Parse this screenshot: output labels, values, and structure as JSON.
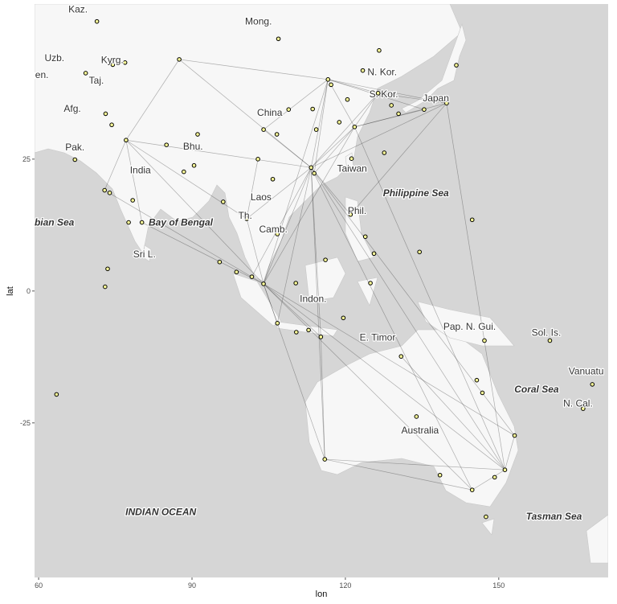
{
  "chart_data": {
    "type": "map",
    "xlabel": "lon",
    "ylabel": "lat",
    "xlim": [
      59.2,
      171.4
    ],
    "ylim": [
      -54.3,
      54.4
    ],
    "xticks": [
      60,
      90,
      120,
      150
    ],
    "yticks": [
      25,
      0,
      -25
    ],
    "point_color": "#ffff99",
    "route_color": "#222222",
    "labels": [
      {
        "text": "Kaz.",
        "lon": 67.7,
        "lat": 53.4
      },
      {
        "text": "Mong.",
        "lon": 103.0,
        "lat": 51.1
      },
      {
        "text": "Uzb.",
        "lon": 63.1,
        "lat": 44.2
      },
      {
        "text": "Kyrg.",
        "lon": 74.4,
        "lat": 43.8
      },
      {
        "text": "Turkmen.",
        "lon": 58.0,
        "lat": 41.0
      },
      {
        "text": "Taj.",
        "lon": 71.3,
        "lat": 39.9
      },
      {
        "text": "Afg.",
        "lon": 66.6,
        "lat": 34.6
      },
      {
        "text": "Pak.",
        "lon": 67.1,
        "lat": 27.3
      },
      {
        "text": "India",
        "lon": 79.9,
        "lat": 22.9
      },
      {
        "text": "Bhu.",
        "lon": 90.2,
        "lat": 27.4
      },
      {
        "text": "China",
        "lon": 105.2,
        "lat": 33.8
      },
      {
        "text": "N. Kor.",
        "lon": 127.2,
        "lat": 41.5
      },
      {
        "text": "S. Kor.",
        "lon": 127.5,
        "lat": 37.3
      },
      {
        "text": "Japan",
        "lon": 137.7,
        "lat": 36.6
      },
      {
        "text": "Taiwan",
        "lon": 121.3,
        "lat": 23.2
      },
      {
        "text": "Philippine Sea",
        "lon": 133.8,
        "lat": 18.6,
        "italic": true
      },
      {
        "text": "Arabian Sea",
        "lon": 61.5,
        "lat": 13.0,
        "italic": true
      },
      {
        "text": "Bay of Bengal",
        "lon": 87.8,
        "lat": 13.0,
        "italic": true
      },
      {
        "text": "Sri L.",
        "lon": 80.7,
        "lat": 7.0
      },
      {
        "text": "Laos",
        "lon": 103.5,
        "lat": 17.8
      },
      {
        "text": "Th.",
        "lon": 100.4,
        "lat": 14.3
      },
      {
        "text": "Camb.",
        "lon": 105.9,
        "lat": 11.7
      },
      {
        "text": "Phil.",
        "lon": 122.3,
        "lat": 15.2
      },
      {
        "text": "Indon.",
        "lon": 113.7,
        "lat": -1.5
      },
      {
        "text": "E. Timor",
        "lon": 126.3,
        "lat": -8.8
      },
      {
        "text": "Pap. N. Gui.",
        "lon": 144.3,
        "lat": -6.7
      },
      {
        "text": "Sol. Is.",
        "lon": 159.3,
        "lat": -7.9
      },
      {
        "text": "Vanuatu",
        "lon": 167.1,
        "lat": -15.2
      },
      {
        "text": "Coral Sea",
        "lon": 157.4,
        "lat": -18.6,
        "italic": true
      },
      {
        "text": "N. Cal.",
        "lon": 165.5,
        "lat": -21.3
      },
      {
        "text": "Australia",
        "lon": 134.6,
        "lat": -26.4
      },
      {
        "text": "INDIAN OCEAN",
        "lon": 83.9,
        "lat": -41.9,
        "italic": true
      },
      {
        "text": "Tasman Sea",
        "lon": 160.8,
        "lat": -42.7,
        "italic": true
      }
    ],
    "airports": {
      "lon": [
        116.6,
        121.8,
        113.3,
        113.9,
        139.8,
        126.4,
        103.99,
        100.7,
        101.7,
        77.1,
        72.9,
        151.2,
        144.8,
        115.97,
        153.1,
        106.7,
        121.0,
        87.5,
        104.0,
        115.2,
        121.2,
        102.9,
        135.4,
        130.9,
        80.2,
        88.4,
        85.0,
        90.4,
        96.1,
        105.8,
        106.7,
        104.9,
        110.4,
        112.8,
        119.6,
        124.9,
        125.6,
        123.9,
        116.1,
        110.3,
        98.7,
        95.4,
        147.2,
        160.0,
        168.3,
        166.5,
        138.5,
        147.5,
        145.7,
        146.8,
        133.9,
        149.2,
        117.2,
        120.4,
        118.8,
        108.9,
        106.6,
        114.3,
        113.6,
        123.4,
        126.6,
        129.0,
        130.4,
        141.7,
        127.6,
        73.9,
        77.6,
        78.4,
        74.3,
        67.1,
        73.1,
        69.2,
        74.5,
        76.9,
        71.4,
        106.9,
        91.1,
        73.5,
        144.8,
        134.5,
        63.5,
        73.0
      ],
      "lat": [
        40.1,
        31.1,
        23.4,
        22.3,
        35.6,
        37.5,
        1.36,
        13.7,
        2.7,
        28.6,
        19.1,
        -33.9,
        -37.7,
        -31.9,
        -27.4,
        -6.1,
        14.5,
        43.9,
        30.6,
        -8.7,
        25.1,
        25.0,
        34.4,
        -12.4,
        13.0,
        22.6,
        27.7,
        23.8,
        16.9,
        21.2,
        10.8,
        11.6,
        -7.8,
        -7.4,
        -5.1,
        1.5,
        7.1,
        10.3,
        5.9,
        1.5,
        3.6,
        5.5,
        -9.4,
        -9.4,
        -17.7,
        -22.3,
        -34.9,
        -42.8,
        -16.9,
        -19.3,
        -23.8,
        -35.3,
        39.1,
        36.3,
        32.0,
        34.4,
        29.7,
        30.6,
        34.5,
        41.8,
        45.6,
        35.2,
        33.6,
        42.8,
        26.2,
        18.6,
        13.0,
        17.2,
        31.5,
        24.9,
        33.6,
        41.3,
        42.9,
        43.3,
        51.1,
        47.8,
        29.7,
        4.2,
        13.5,
        7.4,
        -19.6,
        0.8
      ]
    },
    "routes": [
      {
        "x": [
          113.3,
          116.6
        ],
        "y": [
          23.4,
          40.1
        ]
      },
      {
        "x": [
          113.3,
          121.8
        ],
        "y": [
          23.4,
          31.1
        ]
      },
      {
        "x": [
          113.3,
          139.8
        ],
        "y": [
          23.4,
          35.6
        ]
      },
      {
        "x": [
          113.3,
          103.99
        ],
        "y": [
          23.4,
          1.36
        ]
      },
      {
        "x": [
          113.3,
          100.7
        ],
        "y": [
          23.4,
          13.7
        ]
      },
      {
        "x": [
          113.3,
          101.7
        ],
        "y": [
          23.4,
          2.7
        ]
      },
      {
        "x": [
          113.3,
          106.7
        ],
        "y": [
          23.4,
          -6.1
        ]
      },
      {
        "x": [
          113.3,
          151.2
        ],
        "y": [
          23.4,
          -33.9
        ]
      },
      {
        "x": [
          113.3,
          144.8
        ],
        "y": [
          23.4,
          -37.7
        ]
      },
      {
        "x": [
          113.3,
          115.97
        ],
        "y": [
          23.4,
          -31.9
        ]
      },
      {
        "x": [
          113.3,
          77.1
        ],
        "y": [
          23.4,
          28.6
        ]
      },
      {
        "x": [
          113.3,
          121.0
        ],
        "y": [
          23.4,
          14.5
        ]
      },
      {
        "x": [
          113.3,
          87.5
        ],
        "y": [
          23.4,
          43.9
        ]
      },
      {
        "x": [
          113.3,
          104.0
        ],
        "y": [
          23.4,
          30.6
        ]
      },
      {
        "x": [
          113.3,
          115.2
        ],
        "y": [
          23.4,
          -8.7
        ]
      },
      {
        "x": [
          113.3,
          126.4
        ],
        "y": [
          23.4,
          37.5
        ]
      },
      {
        "x": [
          113.3,
          153.1
        ],
        "y": [
          23.4,
          -27.4
        ]
      },
      {
        "x": [
          116.6,
          121.8
        ],
        "y": [
          40.1,
          31.1
        ]
      },
      {
        "x": [
          116.6,
          139.8
        ],
        "y": [
          40.1,
          35.6
        ]
      },
      {
        "x": [
          116.6,
          126.4
        ],
        "y": [
          40.1,
          37.5
        ]
      },
      {
        "x": [
          116.6,
          87.5
        ],
        "y": [
          40.1,
          43.9
        ]
      },
      {
        "x": [
          116.6,
          104.0
        ],
        "y": [
          40.1,
          30.6
        ]
      },
      {
        "x": [
          116.6,
          113.9
        ],
        "y": [
          40.1,
          22.3
        ]
      },
      {
        "x": [
          116.6,
          103.99
        ],
        "y": [
          40.1,
          1.36
        ]
      },
      {
        "x": [
          116.6,
          135.4
        ],
        "y": [
          40.1,
          34.4
        ]
      },
      {
        "x": [
          121.8,
          139.8
        ],
        "y": [
          31.1,
          35.6
        ]
      },
      {
        "x": [
          121.8,
          126.4
        ],
        "y": [
          31.1,
          37.5
        ]
      },
      {
        "x": [
          121.8,
          103.99
        ],
        "y": [
          31.1,
          1.36
        ]
      },
      {
        "x": [
          121.8,
          113.9
        ],
        "y": [
          31.1,
          22.3
        ]
      },
      {
        "x": [
          121.8,
          135.4
        ],
        "y": [
          31.1,
          34.4
        ]
      },
      {
        "x": [
          121.8,
          151.2
        ],
        "y": [
          31.1,
          -33.9
        ]
      },
      {
        "x": [
          103.99,
          151.2
        ],
        "y": [
          1.36,
          -33.9
        ]
      },
      {
        "x": [
          103.99,
          144.8
        ],
        "y": [
          1.36,
          -37.7
        ]
      },
      {
        "x": [
          103.99,
          115.97
        ],
        "y": [
          1.36,
          -31.9
        ]
      },
      {
        "x": [
          103.99,
          77.1
        ],
        "y": [
          1.36,
          28.6
        ]
      },
      {
        "x": [
          103.99,
          72.9
        ],
        "y": [
          1.36,
          19.1
        ]
      },
      {
        "x": [
          103.99,
          106.7
        ],
        "y": [
          1.36,
          -6.1
        ]
      },
      {
        "x": [
          103.99,
          100.7
        ],
        "y": [
          1.36,
          13.7
        ]
      },
      {
        "x": [
          103.99,
          115.2
        ],
        "y": [
          1.36,
          -8.7
        ]
      },
      {
        "x": [
          103.99,
          153.1
        ],
        "y": [
          1.36,
          -27.4
        ]
      },
      {
        "x": [
          103.99,
          80.2
        ],
        "y": [
          1.36,
          13.0
        ]
      },
      {
        "x": [
          77.1,
          72.9
        ],
        "y": [
          28.6,
          19.1
        ]
      },
      {
        "x": [
          77.1,
          80.2
        ],
        "y": [
          28.6,
          13.0
        ]
      },
      {
        "x": [
          77.1,
          100.7
        ],
        "y": [
          28.6,
          13.7
        ]
      },
      {
        "x": [
          87.5,
          77.1
        ],
        "y": [
          43.9,
          28.6
        ]
      },
      {
        "x": [
          151.2,
          144.8
        ],
        "y": [
          -33.9,
          -37.7
        ]
      },
      {
        "x": [
          151.2,
          153.1
        ],
        "y": [
          -33.9,
          -27.4
        ]
      },
      {
        "x": [
          151.2,
          115.97
        ],
        "y": [
          -33.9,
          -31.9
        ]
      },
      {
        "x": [
          144.8,
          115.97
        ],
        "y": [
          -37.7,
          -31.9
        ]
      },
      {
        "x": [
          130.9,
          151.2
        ],
        "y": [
          -12.4,
          -33.9
        ]
      },
      {
        "x": [
          115.2,
          115.97
        ],
        "y": [
          -8.7,
          -31.9
        ]
      },
      {
        "x": [
          139.8,
          121.0
        ],
        "y": [
          35.6,
          14.5
        ]
      },
      {
        "x": [
          139.8,
          151.2
        ],
        "y": [
          35.6,
          -33.9
        ]
      },
      {
        "x": [
          126.4,
          139.8
        ],
        "y": [
          37.5,
          35.6
        ]
      },
      {
        "x": [
          102.9,
          100.7
        ],
        "y": [
          25.0,
          13.7
        ]
      }
    ]
  }
}
